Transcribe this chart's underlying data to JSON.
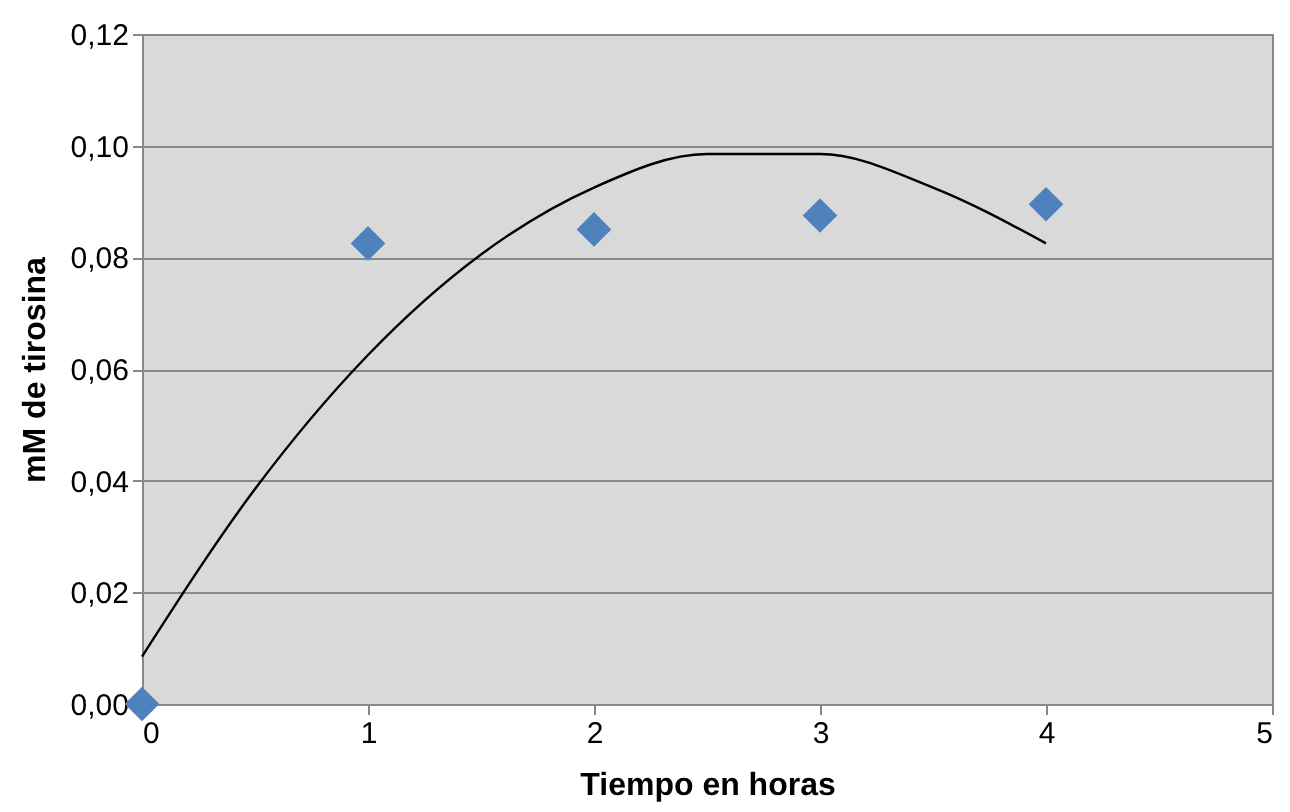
{
  "chart_data": {
    "type": "scatter",
    "xlabel": "Tiempo en horas",
    "ylabel": "mM de tirosina",
    "series": [
      {
        "type": "scatter",
        "color": "#4f81bd",
        "marker": "diamond",
        "x": [
          0,
          1,
          2,
          3,
          4
        ],
        "values": [
          0,
          0.0825,
          0.085,
          0.0875,
          0.0895
        ]
      },
      {
        "type": "line",
        "color": "#000000",
        "marker": "none",
        "x": [
          0,
          0.5,
          1,
          1.5,
          2,
          2.5,
          3,
          3.5,
          4
        ],
        "values": [
          0.0085,
          0.0385,
          0.0625,
          0.0805,
          0.0925,
          0.0985,
          0.0985,
          0.0925,
          0.0825
        ]
      }
    ],
    "xlim": [
      0,
      5
    ],
    "xticks": [
      0,
      1,
      2,
      3,
      4,
      5
    ],
    "ylim": [
      0,
      0.12
    ],
    "yticks": [
      {
        "value": 0,
        "label": "0,00"
      },
      {
        "value": 0.02,
        "label": "0,02"
      },
      {
        "value": 0.04,
        "label": "0,04"
      },
      {
        "value": 0.06,
        "label": "0,06"
      },
      {
        "value": 0.08,
        "label": "0,08"
      },
      {
        "value": 0.1,
        "label": "0,10"
      },
      {
        "value": 0.12,
        "label": "0,12"
      }
    ],
    "grid": "y"
  }
}
